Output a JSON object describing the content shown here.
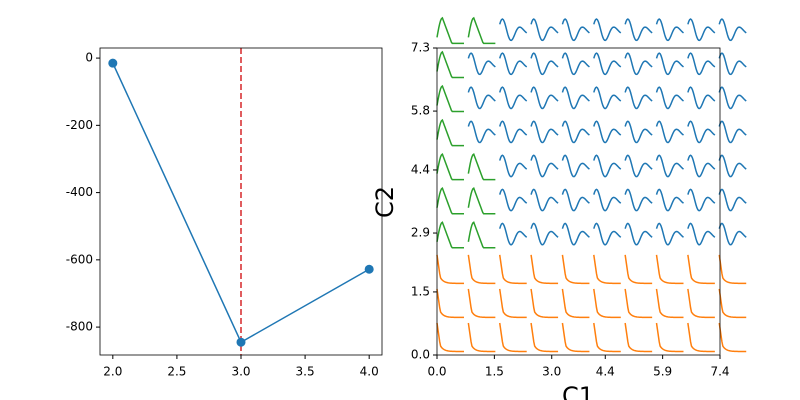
{
  "chart_data": [
    {
      "type": "line",
      "x": [
        2,
        3,
        4
      ],
      "values": [
        -15,
        -845,
        -628
      ],
      "color": "#1f77b4",
      "xlim": [
        1.9,
        4.1
      ],
      "ylim": [
        -883,
        30
      ],
      "xticks": [
        {
          "value": 2,
          "label": "2.0"
        },
        {
          "value": 2.5,
          "label": "2.5"
        },
        {
          "value": 3,
          "label": "3.0"
        },
        {
          "value": 3.5,
          "label": "3.5"
        },
        {
          "value": 4,
          "label": "4.0"
        }
      ],
      "yticks": [
        0,
        -200,
        -400,
        -600,
        -800
      ],
      "vline": {
        "x": 3,
        "color": "#d62728"
      }
    },
    {
      "type": "glyph",
      "xlabel": "C1",
      "ylabel": "C2",
      "xlim": [
        0,
        7.4
      ],
      "ylim": [
        0,
        7.3
      ],
      "xticks": [
        {
          "value": 0,
          "label": "0.0"
        },
        1.5,
        {
          "value": 3,
          "label": "3.0"
        },
        4.4,
        5.9,
        7.4
      ],
      "yticks": [
        {
          "value": 0,
          "label": "0.0"
        },
        1.5,
        2.9,
        4.4,
        5.8,
        7.3
      ],
      "colors": [
        "#1f77b4",
        "#ff7f0e",
        "#2ca02c"
      ],
      "glyph_x": [
        0,
        0.82,
        1.64,
        2.46,
        3.28,
        4.1,
        4.92,
        5.74,
        6.56,
        7.38
      ],
      "glyph_y": [
        0,
        0.81,
        1.62,
        2.43,
        3.24,
        4.05,
        4.86,
        5.67,
        6.48,
        7.29
      ],
      "clusters": [
        [
          1,
          1,
          1,
          1,
          1,
          1,
          1,
          1,
          1,
          1
        ],
        [
          1,
          1,
          1,
          1,
          1,
          1,
          1,
          1,
          1,
          1
        ],
        [
          1,
          1,
          1,
          1,
          1,
          1,
          1,
          1,
          1,
          1
        ],
        [
          2,
          2,
          0,
          0,
          0,
          0,
          0,
          0,
          0,
          0
        ],
        [
          2,
          2,
          0,
          0,
          0,
          0,
          0,
          0,
          0,
          0
        ],
        [
          2,
          2,
          0,
          0,
          0,
          0,
          0,
          0,
          0,
          0
        ],
        [
          2,
          0,
          0,
          0,
          0,
          0,
          0,
          0,
          0,
          0
        ],
        [
          2,
          0,
          0,
          0,
          0,
          0,
          0,
          0,
          0,
          0
        ],
        [
          2,
          0,
          0,
          0,
          0,
          0,
          0,
          0,
          0,
          0
        ],
        [
          2,
          2,
          0,
          0,
          0,
          0,
          0,
          0,
          0,
          0
        ]
      ]
    }
  ]
}
